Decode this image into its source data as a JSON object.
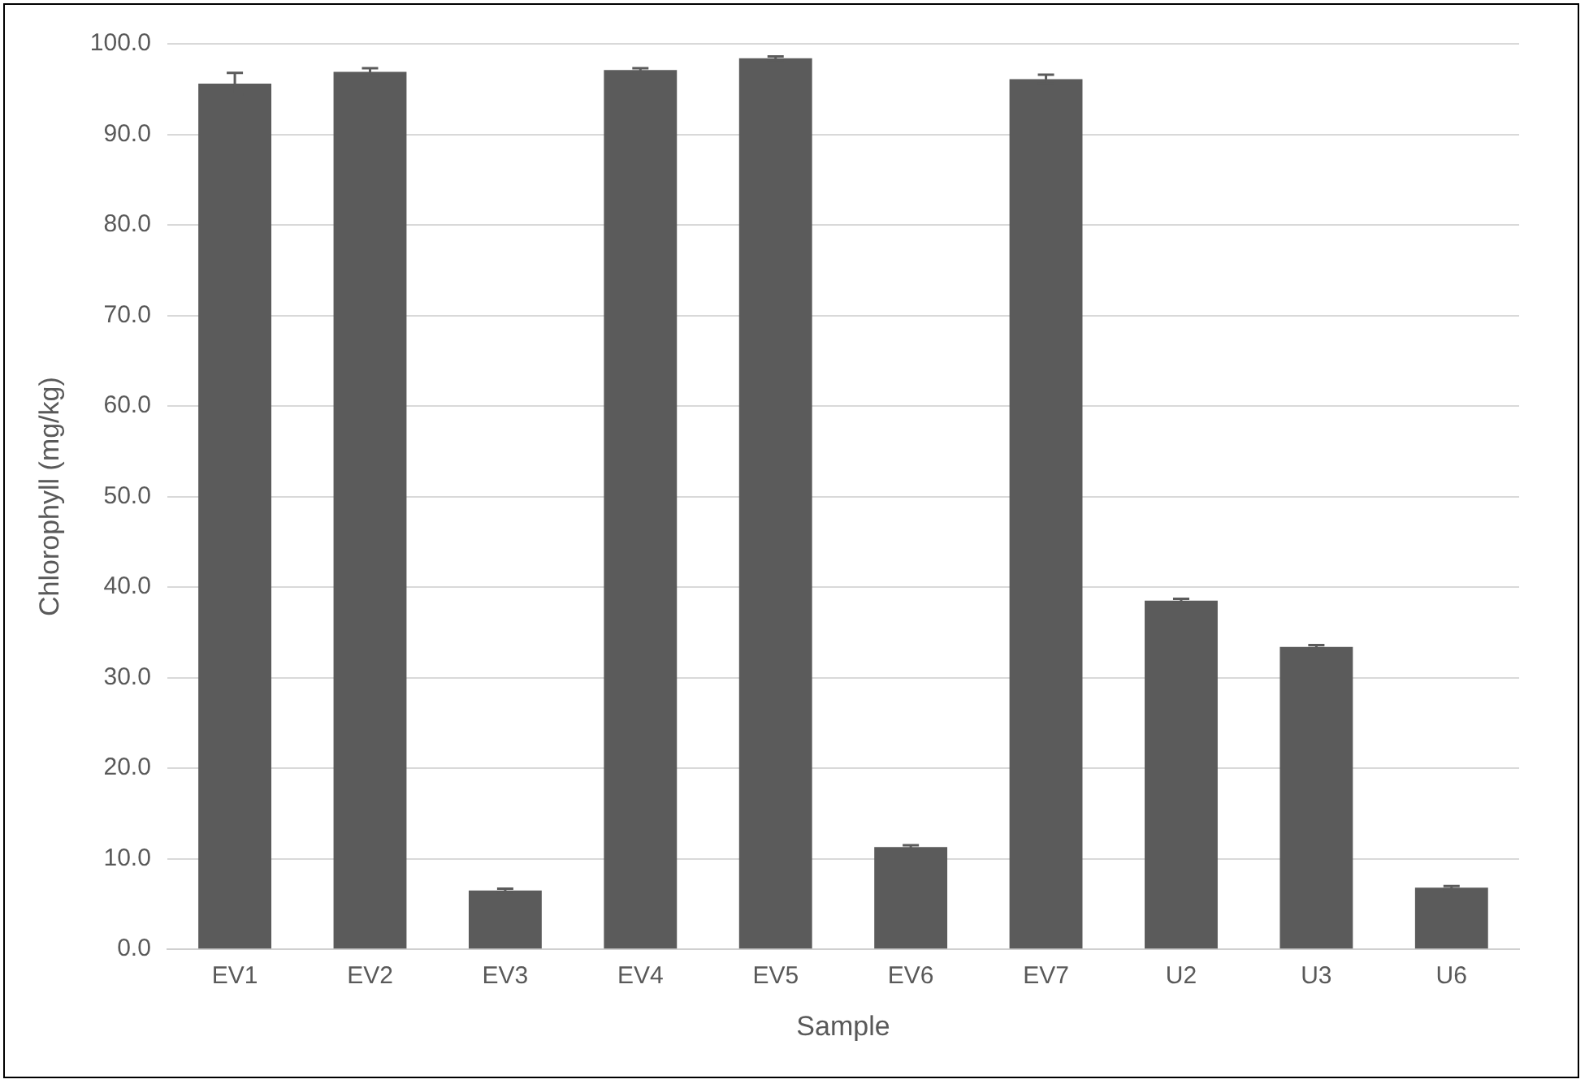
{
  "chart_data": {
    "type": "bar",
    "xlabel": "Sample",
    "ylabel": "Chlorophyll (mg/kg)",
    "categories": [
      "EV1",
      "EV2",
      "EV3",
      "EV4",
      "EV5",
      "EV6",
      "EV7",
      "U2",
      "U3",
      "U6"
    ],
    "values": [
      95.6,
      96.9,
      6.5,
      97.1,
      98.4,
      11.3,
      96.1,
      38.5,
      33.4,
      6.8
    ],
    "errors": [
      1.2,
      0.4,
      0.2,
      0.2,
      0.2,
      0.2,
      0.5,
      0.2,
      0.2,
      0.2
    ],
    "color": "#5b5b5b",
    "ylim": [
      0,
      100
    ],
    "yticks": [
      {
        "value": 0,
        "label": "0.0"
      },
      {
        "value": 10,
        "label": "10.0"
      },
      {
        "value": 20,
        "label": "20.0"
      },
      {
        "value": 30,
        "label": "30.0"
      },
      {
        "value": 40,
        "label": "40.0"
      },
      {
        "value": 50,
        "label": "50.0"
      },
      {
        "value": 60,
        "label": "60.0"
      },
      {
        "value": 70,
        "label": "70.0"
      },
      {
        "value": 80,
        "label": "80.0"
      },
      {
        "value": 90,
        "label": "90.0"
      },
      {
        "value": 100,
        "label": "100.0"
      }
    ],
    "grid": "y",
    "legend": false
  }
}
